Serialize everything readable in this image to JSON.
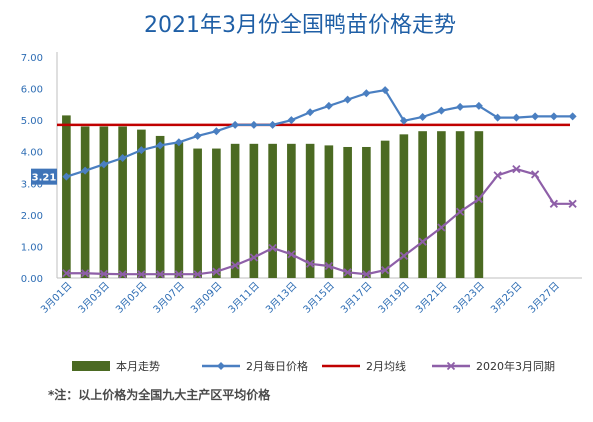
{
  "chart_data": {
    "type": "bar",
    "title": "2021年3月份全国鸭苗价格走势",
    "ylim": [
      0,
      7
    ],
    "yticks": [
      "0.00",
      "1.00",
      "2.00",
      "3.00",
      "4.00",
      "5.00",
      "6.00",
      "7.00"
    ],
    "categories": [
      "3月01日",
      "3月02日",
      "3月03日",
      "3月04日",
      "3月05日",
      "3月06日",
      "3月07日",
      "3月08日",
      "3月09日",
      "3月10日",
      "3月11日",
      "3月12日",
      "3月13日",
      "3月14日",
      "3月15日",
      "3月16日",
      "3月17日",
      "3月18日",
      "3月19日",
      "3月20日",
      "3月21日",
      "3月22日",
      "3月23日",
      "3月24日",
      "3月25日",
      "3月26日",
      "3月27日",
      "3月28日"
    ],
    "xtick_labels": [
      "3月01日",
      "3月03日",
      "3月05日",
      "3月07日",
      "3月09日",
      "3月11日",
      "3月13日",
      "3月15日",
      "3月17日",
      "3月19日",
      "3月21日",
      "3月23日",
      "3月25日",
      "3月27日"
    ],
    "series": [
      {
        "name": "本月走势",
        "type": "bar",
        "color": "#4b6a22",
        "values": [
          5.15,
          4.8,
          4.8,
          4.8,
          4.7,
          4.5,
          4.3,
          4.1,
          4.1,
          4.25,
          4.25,
          4.25,
          4.25,
          4.25,
          4.2,
          4.15,
          4.15,
          4.35,
          4.55,
          4.65,
          4.65,
          4.65,
          4.65,
          null,
          null,
          null,
          null,
          null
        ]
      },
      {
        "name": "2月每日价格",
        "type": "line",
        "color": "#4a7fc1",
        "marker": "diamond",
        "values": [
          3.21,
          3.4,
          3.6,
          3.8,
          4.05,
          4.2,
          4.3,
          4.5,
          4.65,
          4.85,
          4.85,
          4.85,
          5.0,
          5.25,
          5.45,
          5.65,
          5.85,
          5.95,
          4.98,
          5.1,
          5.3,
          5.42,
          5.45,
          5.08,
          5.08,
          5.12,
          5.12,
          5.12
        ]
      },
      {
        "name": "2月均线",
        "type": "hline",
        "color": "#c00000",
        "value": 4.85
      },
      {
        "name": "2020年3月同期",
        "type": "line",
        "color": "#8e5fa8",
        "marker": "x",
        "values": [
          0.15,
          0.15,
          0.13,
          0.12,
          0.12,
          0.12,
          0.12,
          0.12,
          0.2,
          0.4,
          0.65,
          0.95,
          0.75,
          0.45,
          0.38,
          0.18,
          0.12,
          0.25,
          0.7,
          1.15,
          1.6,
          2.1,
          2.5,
          3.25,
          3.45,
          3.28,
          2.35,
          2.35
        ]
      }
    ],
    "data_label": "3.21",
    "legend_position": "bottom",
    "grid": false
  },
  "footnote": "*注：以上价格为全国九大主产区平均价格"
}
